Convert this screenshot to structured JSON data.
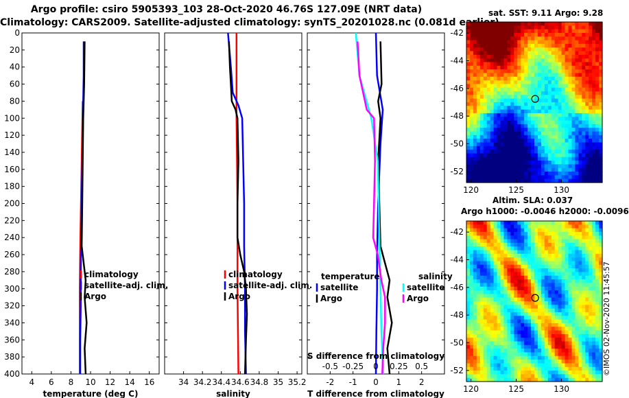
{
  "header": {
    "line1": "Argo profile: csiro 5905393_103 28-Oct-2020 46.76S 127.09E (NRT data)",
    "line2": "Climatology: CARS2009. Satellite-adjusted climatology: synTS_20201028.nc (0.081d earlier)"
  },
  "depth_axis": {
    "ticks": [
      0,
      20,
      40,
      60,
      80,
      100,
      120,
      140,
      160,
      180,
      200,
      220,
      240,
      260,
      280,
      300,
      320,
      340,
      360,
      380,
      400
    ],
    "range": [
      0,
      400
    ]
  },
  "colors": {
    "climatology": "#ff0000",
    "satellite": "#0000ff",
    "argo": "#000000",
    "sat_temp_diff": "#00ffff",
    "sal_diff": "#ff00ff"
  },
  "chart_data": [
    {
      "type": "line",
      "name": "temperature",
      "xlabel": "temperature (deg C)",
      "ylabel": "depth",
      "xlim": [
        3,
        17
      ],
      "ylim": [
        400,
        0
      ],
      "xticks": [
        4,
        6,
        8,
        10,
        12,
        14,
        16
      ],
      "series": [
        {
          "name": "climatology",
          "color": "#ff0000",
          "depth": [
            80,
            150,
            250,
            300,
            350,
            400
          ],
          "values": [
            9.2,
            9.1,
            8.95,
            8.9,
            8.9,
            8.9
          ]
        },
        {
          "name": "satellite-adj. clim.",
          "color": "#0000ff",
          "depth": [
            10,
            50,
            80,
            120,
            200,
            280,
            320,
            360,
            400
          ],
          "values": [
            9.3,
            9.3,
            9.25,
            9.2,
            9.1,
            9.0,
            9.0,
            8.95,
            8.95
          ]
        },
        {
          "name": "Argo",
          "color": "#000000",
          "depth": [
            10,
            60,
            80,
            100,
            150,
            200,
            250,
            270,
            290,
            310,
            340,
            370,
            400
          ],
          "values": [
            9.4,
            9.35,
            9.3,
            9.25,
            9.2,
            9.15,
            9.1,
            9.3,
            9.5,
            9.4,
            9.6,
            9.4,
            9.5
          ]
        }
      ],
      "legend": [
        "climatology",
        "satellite-adj. clim.",
        "Argo"
      ]
    },
    {
      "type": "line",
      "name": "salinity",
      "xlabel": "salinity",
      "ylabel": "depth",
      "xlim": [
        33.8,
        35.25
      ],
      "ylim": [
        400,
        0
      ],
      "xticks": [
        "34",
        "34.2",
        "34.4",
        "34.6",
        "34.8",
        "35",
        "35.2"
      ],
      "series": [
        {
          "name": "climatology",
          "color": "#ff0000",
          "depth": [
            0,
            100,
            200,
            300,
            400
          ],
          "values": [
            34.56,
            34.56,
            34.57,
            34.57,
            34.58
          ]
        },
        {
          "name": "satellite-adj. clim.",
          "color": "#0000ff",
          "depth": [
            0,
            40,
            70,
            85,
            100,
            150,
            200,
            250,
            300,
            350,
            400
          ],
          "values": [
            34.47,
            34.5,
            34.52,
            34.58,
            34.62,
            34.63,
            34.64,
            34.64,
            34.65,
            34.65,
            34.66
          ]
        },
        {
          "name": "Argo",
          "color": "#000000",
          "depth": [
            10,
            40,
            60,
            80,
            90,
            100,
            150,
            200,
            240,
            260,
            280,
            300,
            330,
            360,
            400
          ],
          "values": [
            34.48,
            34.49,
            34.5,
            34.51,
            34.55,
            34.57,
            34.58,
            34.57,
            34.57,
            34.6,
            34.64,
            34.66,
            34.67,
            34.66,
            34.65
          ]
        }
      ],
      "legend": [
        "climatology",
        "satellite-adj. clim.",
        "Argo"
      ]
    },
    {
      "type": "line",
      "name": "differences",
      "xlabel": "T difference from climatology",
      "ylabel": "depth",
      "title_inner": "S difference from climatology",
      "xlim": [
        -3,
        3
      ],
      "ylim": [
        400,
        0
      ],
      "xticks": [
        "-2",
        "-1",
        "0",
        "1",
        "2"
      ],
      "secondary_xticks": [
        "-0.5",
        "-0.25",
        "0",
        "0.25",
        "0.5"
      ],
      "secondary_xlim": [
        -0.75,
        0.75
      ],
      "series": [
        {
          "name": "satellite (temperature)",
          "color": "#0000ff",
          "depth": [
            0,
            50,
            90,
            130,
            200,
            260,
            300,
            350,
            400
          ],
          "values": [
            0.0,
            0.05,
            0.3,
            0.2,
            0.1,
            0.05,
            0.05,
            0.02,
            0.0
          ]
        },
        {
          "name": "Argo (temperature)",
          "color": "#000000",
          "depth": [
            10,
            60,
            80,
            100,
            150,
            200,
            250,
            270,
            290,
            310,
            340,
            370,
            400
          ],
          "values": [
            0.2,
            0.25,
            0.1,
            0.2,
            0.1,
            0.15,
            0.2,
            0.4,
            0.6,
            0.5,
            0.7,
            0.5,
            0.6
          ]
        },
        {
          "name": "satellite (salinity)",
          "color": "#00ffff",
          "depth": [
            0,
            50,
            100,
            150,
            200,
            250,
            300,
            350,
            400
          ],
          "values": [
            -0.22,
            -0.18,
            -0.05,
            0.02,
            0.03,
            0.04,
            0.05,
            0.06,
            0.08
          ]
        },
        {
          "name": "Argo (salinity)",
          "color": "#ff00ff",
          "depth": [
            10,
            50,
            90,
            100,
            150,
            200,
            240,
            260,
            290,
            310,
            340,
            370,
            400
          ],
          "values": [
            -0.2,
            -0.18,
            -0.1,
            -0.02,
            -0.01,
            -0.02,
            -0.03,
            0.02,
            0.06,
            0.1,
            0.1,
            0.08,
            0.07
          ]
        }
      ],
      "legend_temperature": {
        "title": "temperature",
        "items": [
          "satellite",
          "Argo"
        ]
      },
      "legend_salinity": {
        "title": "salinity",
        "items": [
          "satellite",
          "Argo"
        ]
      }
    },
    {
      "type": "heatmap",
      "name": "sst_map",
      "title": "sat. SST: 9.11 Argo: 9.28",
      "xlim": [
        119.5,
        134.5
      ],
      "ylim": [
        -52.8,
        -41.2
      ],
      "xticks": [
        "120",
        "125",
        "130"
      ],
      "yticks": [
        "-42",
        "-44",
        "-46",
        "-48",
        "-50",
        "-52"
      ],
      "marker": {
        "lon": 127.09,
        "lat": -46.76
      }
    },
    {
      "type": "heatmap",
      "name": "sla_map",
      "title": "Altim. SLA: 0.037",
      "subtitle": "Argo h1000: -0.0046 h2000: -0.0096",
      "xlim": [
        119.5,
        134.5
      ],
      "ylim": [
        -52.8,
        -41.2
      ],
      "xticks": [
        "120",
        "125",
        "130"
      ],
      "yticks": [
        "-42",
        "-44",
        "-46",
        "-48",
        "-50",
        "-52"
      ],
      "marker": {
        "lon": 127.09,
        "lat": -46.76
      }
    }
  ],
  "stamp": "©IMOS 02-Nov-2020 11:45:57"
}
